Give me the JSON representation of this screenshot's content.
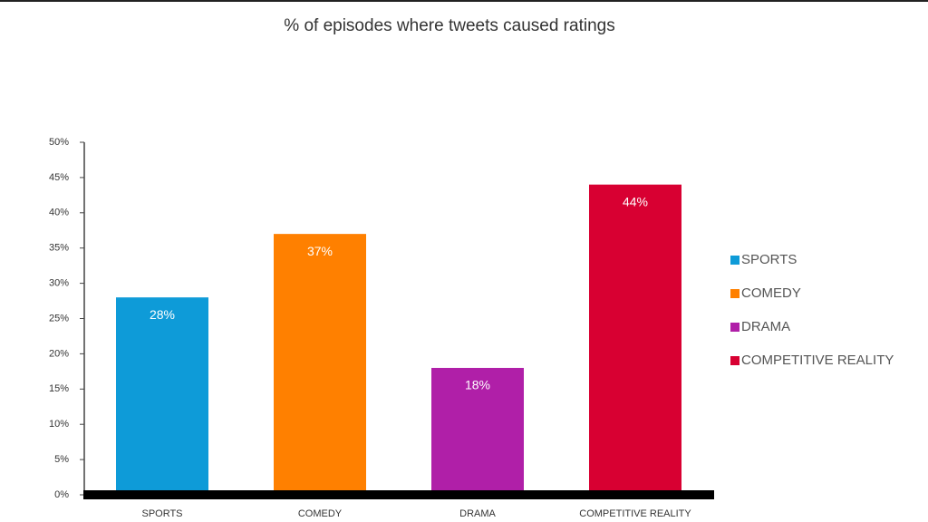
{
  "chart_data": {
    "type": "bar",
    "title": "% of episodes where tweets caused ratings",
    "categories": [
      "SPORTS",
      "COMEDY",
      "DRAMA",
      "COMPETITIVE REALITY"
    ],
    "values": [
      28,
      37,
      18,
      44
    ],
    "value_labels": [
      "28%",
      "37%",
      "18%",
      "44%"
    ],
    "colors": [
      "#0e9bd8",
      "#ff8000",
      "#b01fa8",
      "#d80032"
    ],
    "ylim": [
      0,
      50
    ],
    "yticks": [
      {
        "value": 0,
        "label": "0%"
      },
      {
        "value": 5,
        "label": "5%"
      },
      {
        "value": 10,
        "label": "10%"
      },
      {
        "value": 15,
        "label": "15%"
      },
      {
        "value": 20,
        "label": "20%"
      },
      {
        "value": 25,
        "label": "25%"
      },
      {
        "value": 30,
        "label": "30%"
      },
      {
        "value": 35,
        "label": "35%"
      },
      {
        "value": 40,
        "label": "40%"
      },
      {
        "value": 45,
        "label": "45%"
      },
      {
        "value": 50,
        "label": "50%"
      }
    ],
    "legend": "right"
  }
}
